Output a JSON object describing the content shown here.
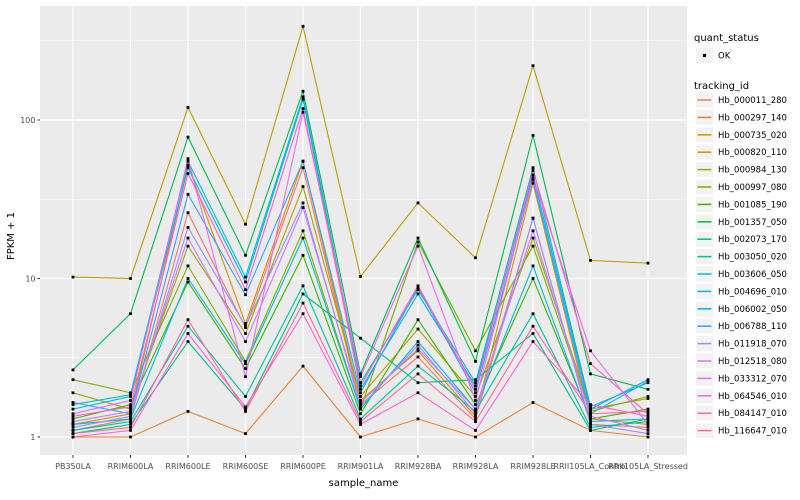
{
  "chart_data": {
    "type": "line",
    "title": "",
    "xlabel": "sample_name",
    "ylabel": "FPKM + 1",
    "y_scale": "log10",
    "y_ticks": [
      1,
      10,
      100
    ],
    "y_tick_labels": [
      "1",
      "10",
      "100"
    ],
    "y_minor_ticks": [
      3.162,
      31.62,
      316.2
    ],
    "ylim": [
      0.77,
      530
    ],
    "grid": "white major+minor horizontal, white vertical at categories, on gray panel",
    "legend_position": "right",
    "point_marker": "small black point on every value",
    "categories": [
      "PB350LA",
      "RRIM600LA",
      "RRIM600LE",
      "RRIM600SE",
      "RRIM600PE",
      "RRIM901LA",
      "RRIM928BA",
      "RRIM928LA",
      "RRIM928LE",
      "RRII105LA_Control",
      "RRII105LA_Stressed"
    ],
    "series": [
      {
        "name": "Hb_000011_280",
        "color": "#F8766D",
        "values": [
          1.1,
          1.3,
          26,
          4.9,
          50,
          1.6,
          3.2,
          1.3,
          24,
          1.2,
          1.15
        ]
      },
      {
        "name": "Hb_000297_140",
        "color": "#EA8331",
        "values": [
          1.0,
          1.0,
          1.45,
          1.05,
          2.8,
          1.0,
          1.3,
          1.0,
          1.65,
          1.1,
          1.0
        ]
      },
      {
        "name": "Hb_000735_020",
        "color": "#D89000",
        "values": [
          1.2,
          1.4,
          52,
          5.2,
          55,
          1.7,
          3.5,
          1.35,
          40,
          1.3,
          1.2
        ]
      },
      {
        "name": "Hb_000820_110",
        "color": "#C09B00",
        "values": [
          10.2,
          10.0,
          120,
          22,
          390,
          10.3,
          30,
          13.5,
          220,
          13,
          12.5
        ]
      },
      {
        "name": "Hb_000984_130",
        "color": "#A3A500",
        "values": [
          1.9,
          1.5,
          16,
          4.5,
          38,
          1.8,
          4.8,
          1.8,
          18,
          1.5,
          1.75
        ]
      },
      {
        "name": "Hb_000997_080",
        "color": "#7CAE00",
        "values": [
          2.3,
          1.9,
          12,
          3.0,
          20,
          1.5,
          17,
          3.5,
          16,
          1.45,
          1.8
        ]
      },
      {
        "name": "Hb_001085_190",
        "color": "#39B600",
        "values": [
          1.3,
          1.6,
          9.5,
          2.7,
          14,
          1.4,
          5.5,
          1.6,
          10,
          1.3,
          1.5
        ]
      },
      {
        "name": "Hb_001357_050",
        "color": "#00BB4E",
        "values": [
          2.65,
          6.0,
          78,
          14,
          152,
          2.5,
          18,
          3.0,
          80,
          2.5,
          2.0
        ]
      },
      {
        "name": "Hb_002073_170",
        "color": "#00BF7D",
        "values": [
          1.05,
          1.2,
          4.0,
          1.5,
          8.0,
          4.2,
          2.2,
          2.3,
          4.5,
          1.1,
          1.3
        ]
      },
      {
        "name": "Hb_003050_020",
        "color": "#00C1A3",
        "values": [
          1.1,
          1.25,
          5.0,
          1.8,
          9.0,
          1.3,
          2.8,
          1.45,
          6.0,
          1.15,
          1.25
        ]
      },
      {
        "name": "Hb_003606_050",
        "color": "#00BFC4",
        "values": [
          1.6,
          1.85,
          55,
          10.2,
          140,
          2.2,
          8.5,
          2.2,
          50,
          1.55,
          2.2
        ]
      },
      {
        "name": "Hb_004696_010",
        "color": "#00BAE0",
        "values": [
          1.2,
          1.3,
          10,
          2.9,
          18,
          1.5,
          4.0,
          1.5,
          12,
          1.25,
          1.3
        ]
      },
      {
        "name": "Hb_006002_050",
        "color": "#00B0F6",
        "values": [
          1.5,
          1.8,
          50,
          9.5,
          135,
          2.0,
          8.0,
          2.1,
          45,
          1.5,
          2.3
        ]
      },
      {
        "name": "Hb_006788_110",
        "color": "#35A2FF",
        "values": [
          1.65,
          1.4,
          34,
          7.9,
          55,
          1.9,
          8.8,
          1.9,
          42,
          1.4,
          2.25
        ]
      },
      {
        "name": "Hb_011918_070",
        "color": "#9590FF",
        "values": [
          1.15,
          1.35,
          21,
          5.0,
          30,
          1.55,
          3.8,
          1.4,
          24,
          1.2,
          1.05
        ]
      },
      {
        "name": "Hb_012518_080",
        "color": "#C77CFF",
        "values": [
          1.25,
          1.45,
          18,
          4.0,
          28,
          1.65,
          3.6,
          1.5,
          20,
          1.35,
          1.1
        ]
      },
      {
        "name": "Hb_033312_070",
        "color": "#E76BF3",
        "values": [
          1.4,
          1.7,
          57,
          2.4,
          112,
          2.4,
          16,
          1.7,
          43,
          3.5,
          1.2
        ]
      },
      {
        "name": "Hb_064546_010",
        "color": "#FA62DB",
        "values": [
          1.0,
          1.1,
          4.5,
          1.55,
          6.0,
          1.2,
          1.9,
          1.1,
          4.0,
          1.6,
          1.35
        ]
      },
      {
        "name": "Hb_084147_010",
        "color": "#FF62BC",
        "values": [
          1.35,
          1.55,
          46,
          8.5,
          118,
          2.1,
          9.0,
          2.0,
          48,
          2.9,
          1.4
        ]
      },
      {
        "name": "Hb_116647_010",
        "color": "#FF6A98",
        "values": [
          1.05,
          1.15,
          5.5,
          1.45,
          7.0,
          1.25,
          2.5,
          1.25,
          5.0,
          1.4,
          1.45
        ]
      }
    ]
  },
  "legend": {
    "quant_status_title": "quant_status",
    "quant_status_items": [
      {
        "label": "OK",
        "marker": "black-point"
      }
    ],
    "tracking_id_title": "tracking_id"
  },
  "colors": {
    "panel_bg": "#EBEBEB",
    "grid_line": "#FFFFFF",
    "outer_bg": "#FFFFFF",
    "tick_label": "#4D4D4D",
    "axis_title": "#000000",
    "legend_key_bg": "#F2F2F2",
    "point": "#000000"
  }
}
